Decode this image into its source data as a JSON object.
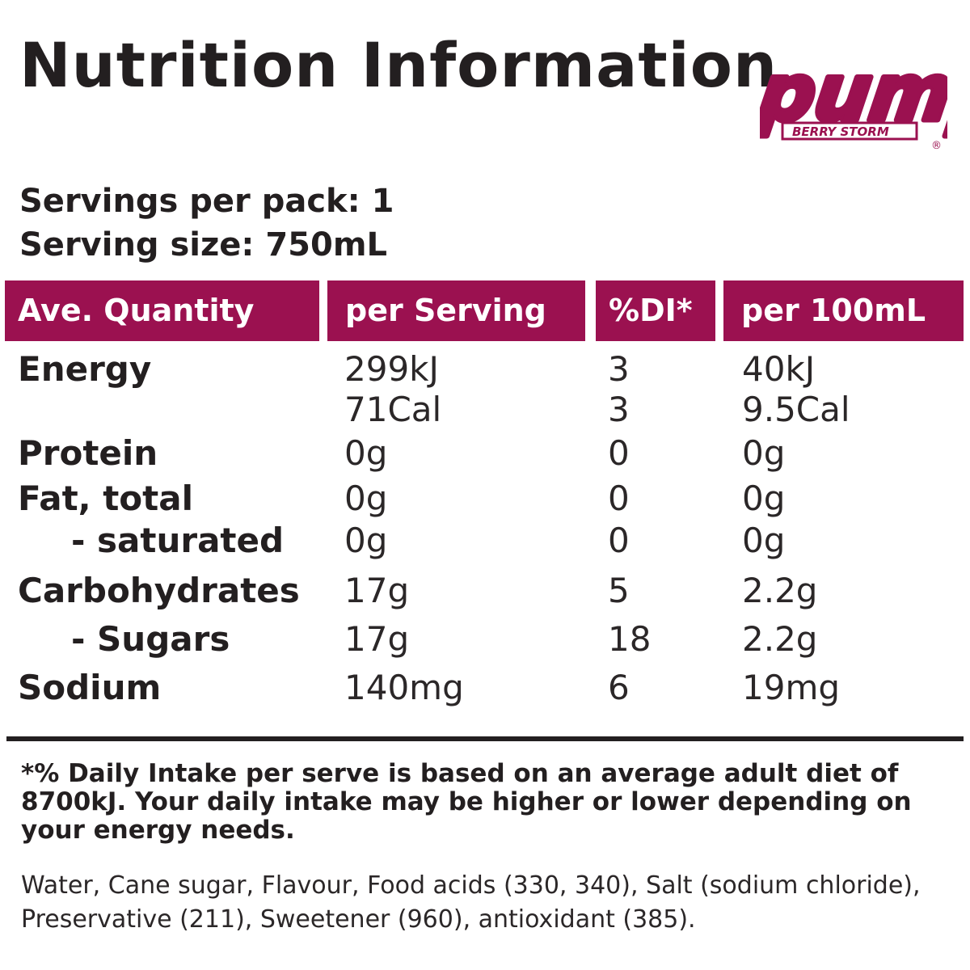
{
  "title": "Nutrition Information",
  "logo": {
    "brand": "pump",
    "flavour": "BERRY STORM",
    "mark": "®",
    "brand_color": "#9b1150"
  },
  "servings_per_pack": "Servings per pack: 1",
  "serving_size": "Serving size: 750mL",
  "table": {
    "headers": [
      "Ave. Quantity",
      "per Serving",
      "%DI*",
      "per 100mL"
    ],
    "header_color": "#9b1150",
    "rows": [
      {
        "name": "Energy",
        "per_serving": "299kJ",
        "di": "3",
        "per_100": "40kJ"
      },
      {
        "name": "",
        "per_serving": "71Cal",
        "di": "3",
        "per_100": "9.5Cal"
      },
      {
        "name": "Protein",
        "per_serving": "0g",
        "di": "0",
        "per_100": "0g"
      },
      {
        "name": "Fat, total",
        "per_serving": "0g",
        "di": "0",
        "per_100": "0g"
      },
      {
        "name": "- saturated",
        "per_serving": "0g",
        "di": "0",
        "per_100": "0g"
      },
      {
        "name": "Carbohydrates",
        "per_serving": "17g",
        "di": "5",
        "per_100": "2.2g"
      },
      {
        "name": "- Sugars",
        "per_serving": "17g",
        "di": "18",
        "per_100": "2.2g"
      },
      {
        "name": "Sodium",
        "per_serving": "140mg",
        "di": "6",
        "per_100": "19mg"
      }
    ]
  },
  "footnote": "*% Daily Intake per serve is based on an average adult diet of 8700kJ. Your daily intake may be higher or lower depending on your energy needs.",
  "ingredients": "Water, Cane sugar, Flavour, Food acids (330, 340), Salt (sodium chloride), Preservative (211), Sweetener (960), antioxidant (385)."
}
